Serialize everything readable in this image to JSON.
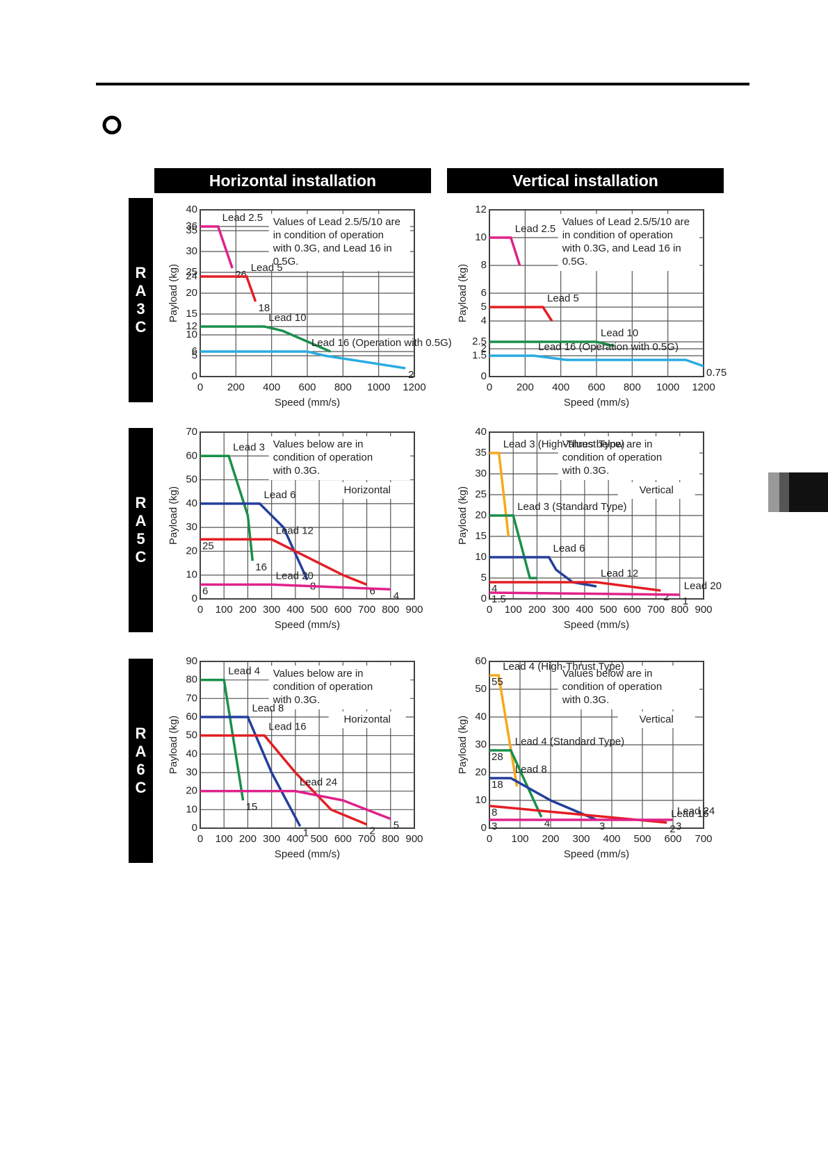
{
  "headers": [
    "Horizontal installation",
    "Vertical installation"
  ],
  "rows": [
    "RA3C",
    "RA5C",
    "RA6C"
  ],
  "chart_data": [
    {
      "type": "line",
      "x_label": "Speed (mm/s)",
      "y_label": "Payload (kg)",
      "annotation": [
        "Values of Lead 2.5/5/10 are",
        "in condition of operation",
        "with 0.3G, and Lead 16 in",
        "0.5G."
      ],
      "xlim": [
        0,
        1200
      ],
      "xticks": [
        0,
        200,
        400,
        600,
        800,
        1000,
        1200
      ],
      "ylim": [
        0,
        40
      ],
      "yticks": [
        0,
        5,
        6,
        10,
        12,
        15,
        20,
        24,
        25,
        30,
        35,
        36,
        40
      ],
      "grid": true,
      "series": [
        {
          "name": "Lead 2.5",
          "color": "#e0218a",
          "x": [
            0,
            100,
            180
          ],
          "values": [
            36,
            36,
            26
          ],
          "value_labels": [
            null,
            null,
            "26"
          ]
        },
        {
          "name": "Lead 5",
          "color": "#e31e24",
          "x": [
            0,
            260,
            310
          ],
          "values": [
            24,
            24,
            18
          ],
          "value_labels": [
            null,
            null,
            "18"
          ]
        },
        {
          "name": "Lead 10",
          "color": "#1a8f4a",
          "x": [
            0,
            360,
            460,
            730
          ],
          "values": [
            12,
            12,
            11,
            6
          ],
          "value_labels": [
            null,
            null,
            null,
            null
          ]
        },
        {
          "name": "Lead 16 (Operation with 0.5G)",
          "color": "#29abe2",
          "x": [
            0,
            600,
            700,
            1150
          ],
          "values": [
            6,
            6,
            5,
            2
          ],
          "value_labels": [
            null,
            null,
            null,
            "2"
          ]
        }
      ]
    },
    {
      "type": "line",
      "x_label": "Speed (mm/s)",
      "y_label": "Payload (kg)",
      "annotation": [
        "Values of Lead 2.5/5/10 are",
        "in condition of operation",
        "with 0.3G, and Lead 16 in",
        "0.5G."
      ],
      "xlim": [
        0,
        1200
      ],
      "xticks": [
        0,
        200,
        400,
        600,
        800,
        1000,
        1200
      ],
      "ylim": [
        0,
        12
      ],
      "yticks": [
        0,
        1.5,
        2,
        2.5,
        4,
        5,
        6,
        8,
        10,
        12
      ],
      "grid": true,
      "series": [
        {
          "name": "Lead 2.5",
          "color": "#e0218a",
          "x": [
            0,
            120,
            170
          ],
          "values": [
            10,
            10,
            8
          ],
          "value_labels": [
            null,
            null,
            null
          ]
        },
        {
          "name": "Lead 5",
          "color": "#e31e24",
          "x": [
            0,
            300,
            350
          ],
          "values": [
            5,
            5,
            4
          ],
          "value_labels": [
            null,
            null,
            null
          ]
        },
        {
          "name": "Lead 10",
          "color": "#1a8f4a",
          "x": [
            0,
            600,
            700
          ],
          "values": [
            2.5,
            2.5,
            2.2
          ],
          "value_labels": [
            null,
            null,
            null
          ]
        },
        {
          "name": "Lead 16 (Operation with 0.5G)",
          "color": "#29abe2",
          "x": [
            0,
            250,
            430,
            1100,
            1200
          ],
          "values": [
            1.5,
            1.5,
            1.2,
            1.2,
            0.75
          ],
          "value_labels": [
            null,
            null,
            null,
            null,
            "0.75"
          ]
        }
      ]
    },
    {
      "type": "line",
      "x_label": "Speed (mm/s)",
      "y_label": "Payload (kg)",
      "mode_label": "Horizontal",
      "annotation": [
        "Values below are in",
        "condition of operation",
        "with 0.3G."
      ],
      "xlim": [
        0,
        900
      ],
      "xticks": [
        0,
        100,
        200,
        300,
        400,
        500,
        600,
        700,
        800,
        900
      ],
      "ylim": [
        0,
        70
      ],
      "yticks": [
        0,
        10,
        20,
        30,
        40,
        50,
        60,
        70
      ],
      "grid": true,
      "series": [
        {
          "name": "Lead 3",
          "color": "#1a8f4a",
          "x": [
            0,
            120,
            200,
            220
          ],
          "values": [
            60,
            60,
            35,
            16
          ],
          "value_labels": [
            null,
            null,
            null,
            "16"
          ]
        },
        {
          "name": "Lead 6",
          "color": "#233f9b",
          "x": [
            0,
            250,
            350,
            450
          ],
          "values": [
            40,
            40,
            30,
            8
          ],
          "value_labels": [
            null,
            null,
            null,
            "8"
          ]
        },
        {
          "name": "Lead 12",
          "color": "#e31e24",
          "x": [
            0,
            300,
            600,
            700
          ],
          "values": [
            25,
            25,
            10,
            6
          ],
          "value_labels": [
            "25",
            null,
            null,
            "6"
          ]
        },
        {
          "name": "Lead 20",
          "color": "#e0218a",
          "x": [
            0,
            300,
            800
          ],
          "values": [
            6,
            6,
            4
          ],
          "value_labels": [
            "6",
            null,
            "4"
          ]
        }
      ]
    },
    {
      "type": "line",
      "x_label": "Speed (mm/s)",
      "y_label": "Payload (kg)",
      "mode_label": "Vertical",
      "annotation": [
        "Values below are in",
        "condition of operation",
        "with 0.3G."
      ],
      "xlim": [
        0,
        900
      ],
      "xticks": [
        0,
        100,
        200,
        300,
        400,
        500,
        600,
        700,
        800,
        900
      ],
      "ylim": [
        0,
        40
      ],
      "yticks": [
        0,
        5,
        10,
        15,
        20,
        25,
        30,
        35,
        40
      ],
      "grid": true,
      "series": [
        {
          "name": "Lead 3 (High-Thrust Type)",
          "color": "#f7a81b",
          "x": [
            0,
            40,
            80
          ],
          "values": [
            35,
            35,
            15
          ],
          "value_labels": [
            null,
            null,
            null
          ]
        },
        {
          "name": "Lead 3 (Standard Type)",
          "color": "#1a8f4a",
          "x": [
            0,
            100,
            170,
            200
          ],
          "values": [
            20,
            20,
            5,
            5
          ],
          "value_labels": [
            null,
            null,
            null,
            null
          ]
        },
        {
          "name": "Lead 6",
          "color": "#233f9b",
          "x": [
            0,
            250,
            280,
            350,
            450
          ],
          "values": [
            10,
            10,
            7,
            4,
            3
          ],
          "value_labels": [
            null,
            null,
            null,
            null,
            null
          ]
        },
        {
          "name": "Lead 12",
          "color": "#e31e24",
          "x": [
            0,
            450,
            720
          ],
          "values": [
            4,
            4,
            2
          ],
          "value_labels": [
            "4",
            null,
            "2"
          ]
        },
        {
          "name": "Lead 20",
          "color": "#e0218a",
          "x": [
            0,
            800
          ],
          "values": [
            1.5,
            1
          ],
          "value_labels": [
            "1.5",
            "1"
          ]
        }
      ]
    },
    {
      "type": "line",
      "x_label": "Speed (mm/s)",
      "y_label": "Payload (kg)",
      "mode_label": "Horizontal",
      "annotation": [
        "Values below are in",
        "condition of operation",
        "with 0.3G."
      ],
      "xlim": [
        0,
        900
      ],
      "xticks": [
        0,
        100,
        200,
        300,
        400,
        500,
        600,
        700,
        800,
        900
      ],
      "ylim": [
        0,
        90
      ],
      "yticks": [
        0,
        10,
        20,
        30,
        40,
        50,
        60,
        70,
        80,
        90
      ],
      "grid": true,
      "series": [
        {
          "name": "Lead 4",
          "color": "#1a8f4a",
          "x": [
            0,
            100,
            180
          ],
          "values": [
            80,
            80,
            15
          ],
          "value_labels": [
            null,
            null,
            "15"
          ]
        },
        {
          "name": "Lead 8",
          "color": "#233f9b",
          "x": [
            0,
            200,
            300,
            420
          ],
          "values": [
            60,
            60,
            30,
            1
          ],
          "value_labels": [
            null,
            null,
            null,
            "1"
          ]
        },
        {
          "name": "Lead 16",
          "color": "#e31e24",
          "x": [
            0,
            270,
            400,
            550,
            700
          ],
          "values": [
            50,
            50,
            30,
            10,
            2
          ],
          "value_labels": [
            null,
            null,
            null,
            null,
            "2"
          ]
        },
        {
          "name": "Lead 24",
          "color": "#e0218a",
          "x": [
            0,
            400,
            600,
            800
          ],
          "values": [
            20,
            20,
            15,
            5
          ],
          "value_labels": [
            null,
            null,
            null,
            "5"
          ]
        }
      ]
    },
    {
      "type": "line",
      "x_label": "Speed (mm/s)",
      "y_label": "Payload (kg)",
      "mode_label": "Vertical",
      "annotation": [
        "Values below are in",
        "condition of operation",
        "with 0.3G."
      ],
      "xlim": [
        0,
        700
      ],
      "xticks": [
        0,
        100,
        200,
        300,
        400,
        500,
        600,
        700
      ],
      "ylim": [
        0,
        60
      ],
      "yticks": [
        0,
        10,
        20,
        30,
        40,
        50,
        60
      ],
      "grid": true,
      "series": [
        {
          "name": "Lead 4 (High-Thrust Type)",
          "color": "#f7a81b",
          "x": [
            0,
            30,
            90
          ],
          "values": [
            55,
            55,
            15
          ],
          "value_labels": [
            "55",
            null,
            null
          ]
        },
        {
          "name": "Lead 4 (Standard Type)",
          "color": "#1a8f4a",
          "x": [
            0,
            70,
            170
          ],
          "values": [
            28,
            28,
            4
          ],
          "value_labels": [
            "28",
            null,
            "4"
          ]
        },
        {
          "name": "Lead 8",
          "color": "#233f9b",
          "x": [
            0,
            70,
            200,
            350
          ],
          "values": [
            18,
            18,
            10,
            3
          ],
          "value_labels": [
            "18",
            null,
            null,
            "3"
          ]
        },
        {
          "name": "Lead 16",
          "color": "#e31e24",
          "x": [
            0,
            580
          ],
          "values": [
            8,
            2
          ],
          "value_labels": [
            "8",
            "2"
          ]
        },
        {
          "name": "Lead 24",
          "color": "#e0218a",
          "x": [
            0,
            600
          ],
          "values": [
            3,
            3
          ],
          "value_labels": [
            "3",
            "3"
          ]
        }
      ]
    }
  ]
}
